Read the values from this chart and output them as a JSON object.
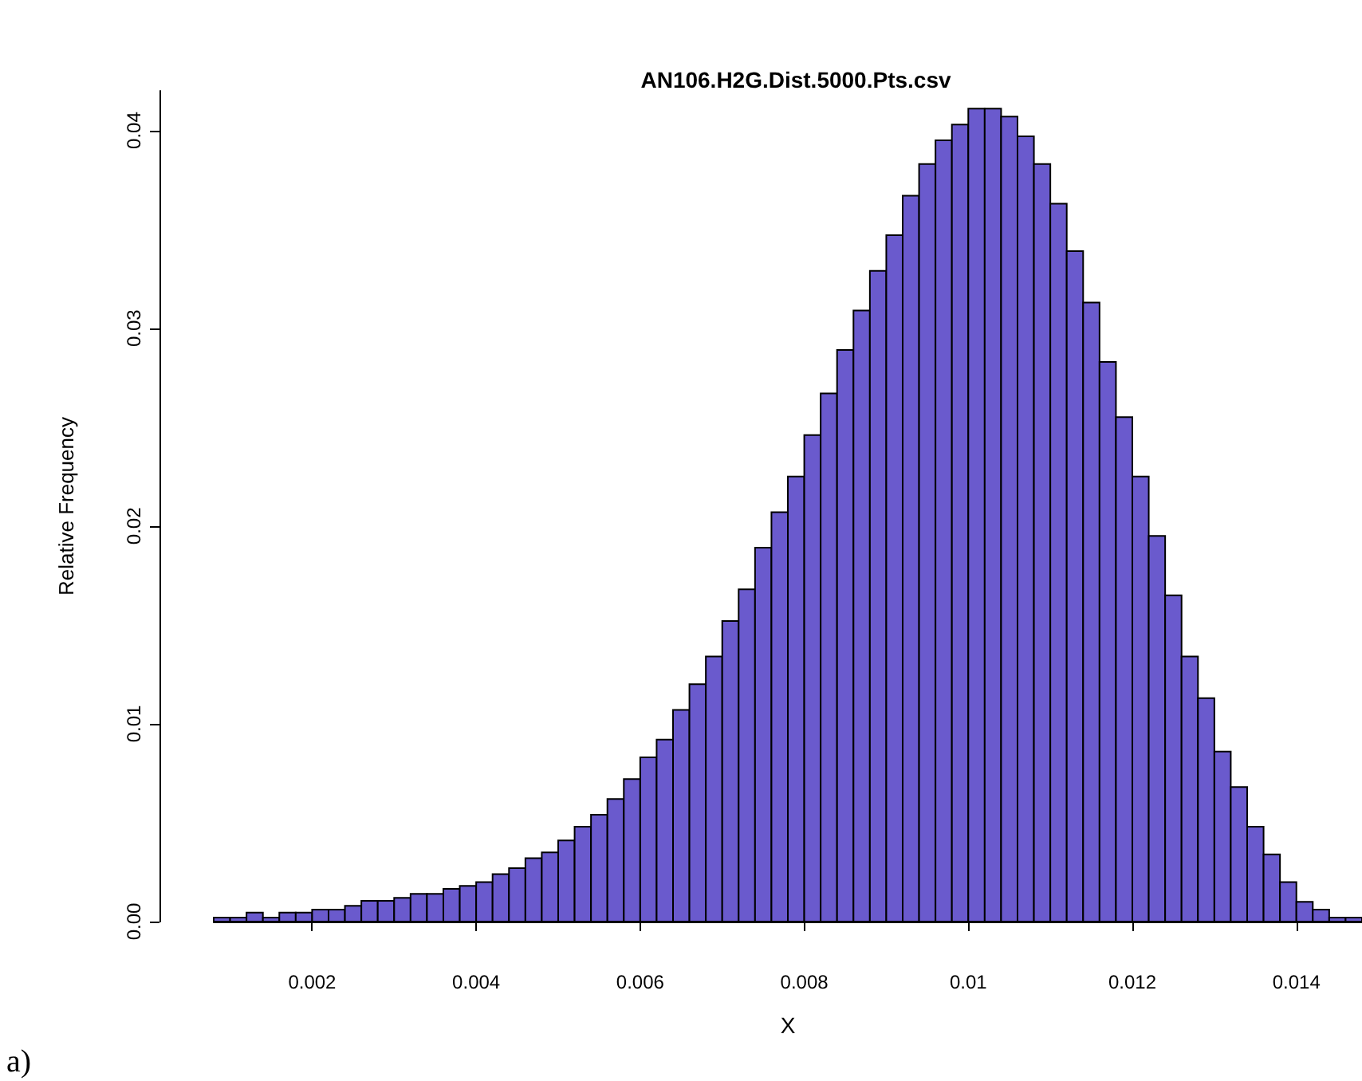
{
  "chart_data": {
    "type": "histogram",
    "title": "AN106.H2G.Dist.5000.Pts.csv",
    "xlabel": "X",
    "ylabel": "Relative Frequency",
    "annotations": [
      "a)"
    ],
    "color": "#6a5acd",
    "bins": [
      0.0008,
      0.001,
      0.0012,
      0.0014,
      0.0016,
      0.0018,
      0.002,
      0.0022,
      0.0024,
      0.0026,
      0.0028,
      0.003,
      0.0032,
      0.0034,
      0.0036,
      0.0038,
      0.004,
      0.0042,
      0.0044,
      0.0046,
      0.0048,
      0.005,
      0.0052,
      0.0054,
      0.0056,
      0.0058,
      0.006,
      0.0062,
      0.0064,
      0.0066,
      0.0068,
      0.007,
      0.0072,
      0.0074,
      0.0076,
      0.0078,
      0.008,
      0.0082,
      0.0084,
      0.0086,
      0.0088,
      0.009,
      0.0092,
      0.0094,
      0.0096,
      0.0098,
      0.01,
      0.0102,
      0.0104,
      0.0106,
      0.0108,
      0.011,
      0.0112,
      0.0114,
      0.0116,
      0.0118,
      0.012,
      0.0122,
      0.0124,
      0.0126,
      0.0128,
      0.013,
      0.0132,
      0.0134,
      0.0136,
      0.0138,
      0.014,
      0.0142,
      0.0144,
      0.0146,
      0.0148
    ],
    "values": [
      0.0002,
      0.0002,
      0.00045,
      0.0002,
      0.00045,
      0.00045,
      0.0006,
      0.0006,
      0.0008,
      0.00105,
      0.00105,
      0.0012,
      0.0014,
      0.0014,
      0.00165,
      0.0018,
      0.002,
      0.0024,
      0.0027,
      0.0032,
      0.0035,
      0.0041,
      0.0048,
      0.0054,
      0.0062,
      0.0072,
      0.0083,
      0.0092,
      0.0107,
      0.012,
      0.0134,
      0.0152,
      0.0168,
      0.0189,
      0.0207,
      0.0225,
      0.0246,
      0.0267,
      0.0289,
      0.0309,
      0.0329,
      0.0347,
      0.0367,
      0.0383,
      0.0395,
      0.0403,
      0.0411,
      0.0411,
      0.0407,
      0.0397,
      0.0383,
      0.0363,
      0.0339,
      0.0313,
      0.0283,
      0.0255,
      0.0225,
      0.0195,
      0.0165,
      0.0134,
      0.0113,
      0.0086,
      0.0068,
      0.0048,
      0.0034,
      0.002,
      0.001,
      0.0006,
      0.0002,
      0.0002
    ],
    "xlim": [
      0.0008,
      0.0148
    ],
    "xticks": [
      0.002,
      0.004,
      0.006,
      0.008,
      0.01,
      0.012,
      0.014
    ],
    "ylim": [
      0,
      0.042
    ],
    "yticks": [
      {
        "value": 0,
        "label": "0.00"
      },
      0.01,
      0.02,
      0.03,
      0.04
    ]
  }
}
